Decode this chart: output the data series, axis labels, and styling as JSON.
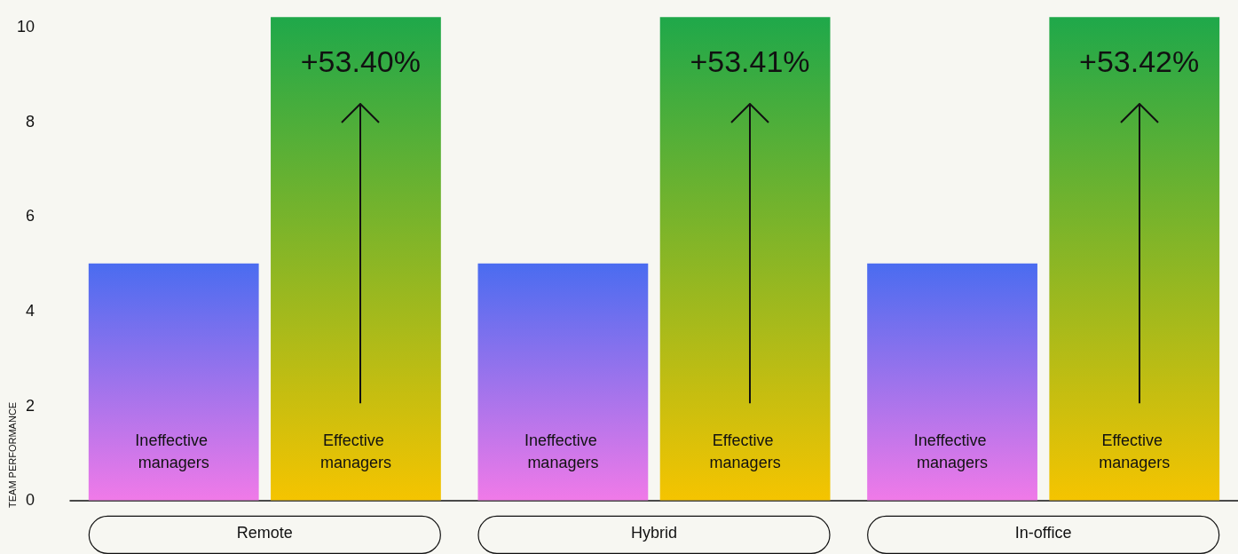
{
  "chart_data": {
    "type": "bar",
    "ylabel": "TEAM PERFORMANCE",
    "categories": [
      "Remote",
      "Hybrid",
      "In-office"
    ],
    "series": [
      {
        "name": "Ineffective managers",
        "color": "#4a6cf0",
        "values": [
          5.0,
          5.0,
          5.0
        ]
      },
      {
        "name": "Effective managers",
        "color": "#1fa84a",
        "values": [
          10.2,
          10.2,
          10.2
        ]
      }
    ],
    "ylim": [
      0,
      10.3
    ],
    "yticks": [
      0,
      2,
      4,
      6,
      8,
      10
    ],
    "grid": false,
    "legend": false,
    "annotations": [
      "+53.40%",
      "+53.41%",
      "+53.42%"
    ]
  }
}
